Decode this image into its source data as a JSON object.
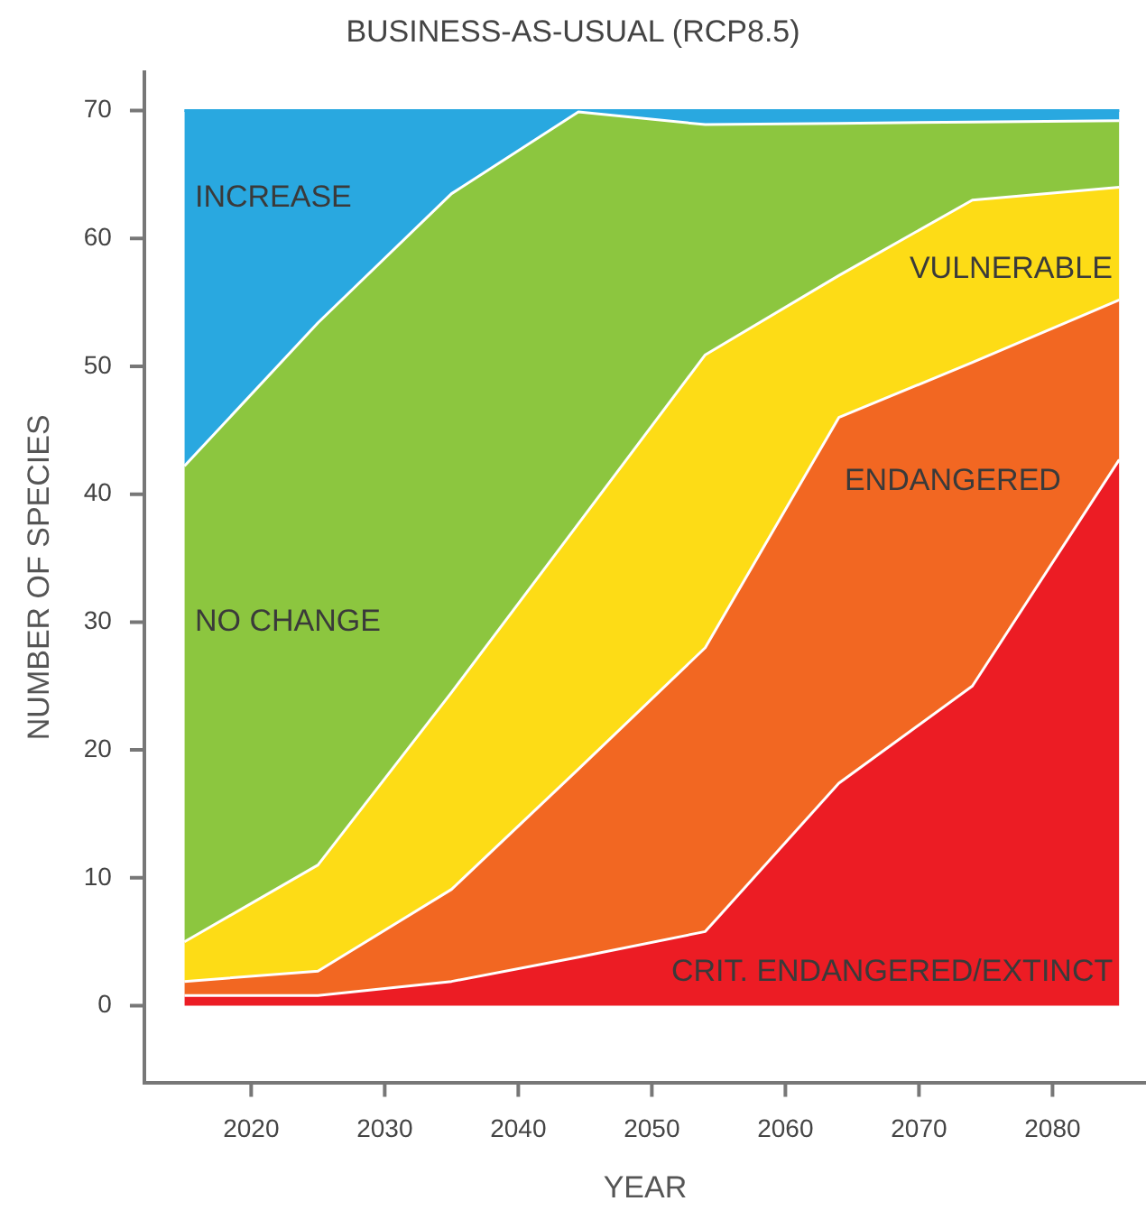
{
  "chart_data": {
    "type": "area",
    "stacked": true,
    "title": "BUSINESS-AS-USUAL (RCP8.5)",
    "xlabel": "YEAR",
    "ylabel": "NUMBER OF SPECIES",
    "xlim": [
      2012,
      2087
    ],
    "xticks": [
      2020,
      2030,
      2040,
      2050,
      2060,
      2070,
      2080
    ],
    "ylim": [
      -6,
      73
    ],
    "yticks": [
      0,
      10,
      20,
      30,
      40,
      50,
      60,
      70
    ],
    "grid": false,
    "legend": false,
    "x": [
      2015,
      2025,
      2035,
      2044.5,
      2054,
      2064,
      2074,
      2085
    ],
    "series": [
      {
        "name": "CRIT. ENDANGERED/EXTINCT",
        "color": "#ec1c24",
        "values": [
          0.8,
          0.8,
          1.9,
          3.8,
          5.8,
          17.4,
          25,
          42.7
        ]
      },
      {
        "name": "ENDANGERED",
        "color": "#f26722",
        "values": [
          1.1,
          1.9,
          7.2,
          14.7,
          22.2,
          28.6,
          25.3,
          12.5
        ]
      },
      {
        "name": "VULNERABLE",
        "color": "#fddc16",
        "values": [
          3.1,
          8.3,
          15.4,
          19.2,
          22.9,
          11.1,
          12.7,
          8.8
        ]
      },
      {
        "name": "NO CHANGE",
        "color": "#8cc63f",
        "values": [
          37.2,
          42.4,
          39,
          32.2,
          18,
          11.9,
          6.1,
          5.2
        ]
      },
      {
        "name": "INCREASE",
        "color": "#29a8e0",
        "values": [
          27.8,
          16.6,
          6.5,
          0.1,
          1.1,
          1,
          0.9,
          0.8
        ]
      }
    ]
  }
}
